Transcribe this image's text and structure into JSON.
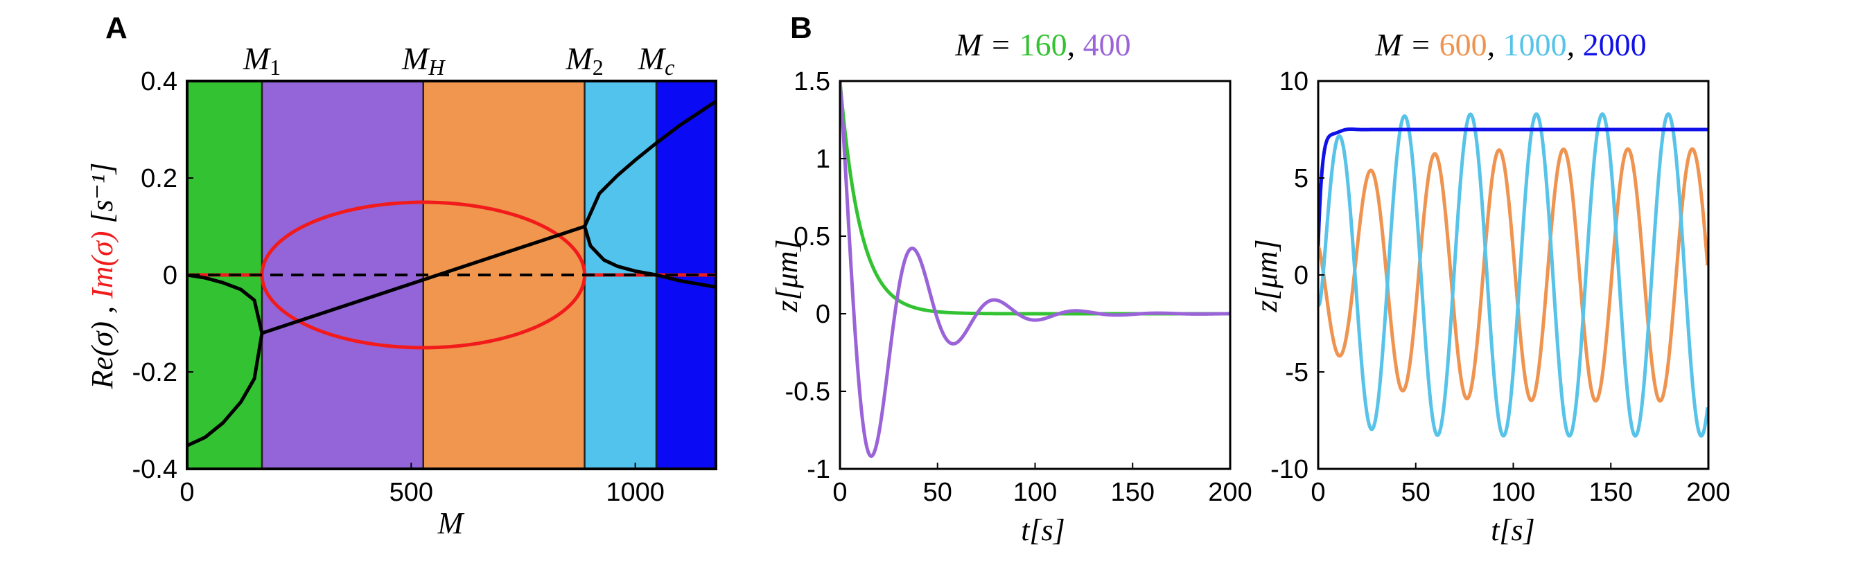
{
  "figure": {
    "panel_a": "A",
    "panel_b": "B"
  },
  "colors": {
    "green": "#33c332",
    "purple": "#9365d9",
    "orange": "#f0964e",
    "lightblue": "#52c3ec",
    "blue": "#0a0af5",
    "red": "#f21b1b",
    "curve_green": "#33c332",
    "curve_purple": "#9a64d8",
    "curve_orange": "#ef9450",
    "curve_cyan": "#57c3e8",
    "curve_blue": "#1010e8"
  },
  "chart_data": [
    {
      "id": "A",
      "type": "line",
      "xlim": [
        0,
        1180
      ],
      "ylim": [
        -0.4,
        0.4
      ],
      "xticks": [
        0,
        500,
        1000
      ],
      "xtick_labels": [
        "0",
        "500",
        "1000"
      ],
      "yticks": [
        0.4,
        0.2,
        0,
        -0.2,
        -0.4
      ],
      "ytick_labels": [
        "0.4",
        "0.2",
        "0",
        "-0.2",
        "-0.4"
      ],
      "xlabel": "M",
      "ylabel_parts": {
        "re": "Re(σ)",
        "sep": " , ",
        "im": "Im(σ)",
        "unit": " [s⁻¹]"
      },
      "regions": [
        {
          "from": 0,
          "to": 167,
          "color": "green"
        },
        {
          "from": 167,
          "to": 527,
          "color": "purple"
        },
        {
          "from": 527,
          "to": 887,
          "color": "orange"
        },
        {
          "from": 887,
          "to": 1047,
          "color": "lightblue"
        },
        {
          "from": 1047,
          "to": 1180,
          "color": "blue"
        }
      ],
      "top_labels": [
        {
          "x": 167,
          "base": "M",
          "sub": "1"
        },
        {
          "x": 527,
          "base": "M",
          "sub": "H"
        },
        {
          "x": 887,
          "base": "M",
          "sub": "2"
        },
        {
          "x": 1047,
          "base": "M",
          "sub": "c"
        }
      ],
      "series": [
        {
          "type": "re_branch",
          "color": "black",
          "points": [
            [
              0,
              -0.352
            ],
            [
              40,
              -0.335
            ],
            [
              80,
              -0.305
            ],
            [
              120,
              -0.262
            ],
            [
              150,
              -0.214
            ],
            [
              167,
              -0.12
            ],
            [
              150,
              -0.052
            ],
            [
              120,
              -0.03
            ],
            [
              80,
              -0.016
            ],
            [
              40,
              -0.006
            ],
            [
              0,
              0.0
            ]
          ]
        },
        {
          "type": "re_line",
          "color": "black",
          "points": [
            [
              167,
              -0.12
            ],
            [
              887,
              0.1
            ]
          ]
        },
        {
          "type": "re_branch",
          "color": "black",
          "points": [
            [
              887,
              0.1
            ],
            [
              920,
              0.168
            ],
            [
              960,
              0.205
            ],
            [
              1000,
              0.237
            ],
            [
              1047,
              0.272
            ],
            [
              1100,
              0.309
            ],
            [
              1180,
              0.358
            ]
          ]
        },
        {
          "type": "re_branch",
          "color": "black",
          "points": [
            [
              887,
              0.1
            ],
            [
              900,
              0.06
            ],
            [
              930,
              0.031
            ],
            [
              960,
              0.018
            ],
            [
              1000,
              0.008
            ],
            [
              1047,
              -0.0
            ],
            [
              1100,
              -0.012
            ],
            [
              1180,
              -0.025
            ]
          ]
        },
        {
          "type": "im_ellipse",
          "color": "red",
          "center": 527,
          "halfwidth": 360,
          "amplitude": 0.15
        },
        {
          "type": "im_zero",
          "color": "red",
          "segments": [
            [
              0,
              167
            ],
            [
              887,
              1180
            ]
          ]
        },
        {
          "type": "dashed_zero",
          "color": "black",
          "from": 0,
          "to": 1180
        }
      ]
    },
    {
      "id": "B1",
      "type": "line",
      "title_parts": [
        {
          "text": "M = ",
          "color": "#000000"
        },
        {
          "text": "160",
          "color": "#33c332"
        },
        {
          "text": ", ",
          "color": "#000000"
        },
        {
          "text": "400",
          "color": "#9a64d8"
        }
      ],
      "xlim": [
        0,
        200
      ],
      "ylim": [
        -1,
        1.5
      ],
      "xticks": [
        0,
        50,
        100,
        150,
        200
      ],
      "xtick_labels": [
        "0",
        "50",
        "100",
        "150",
        "200"
      ],
      "yticks": [
        1.5,
        1,
        0.5,
        0,
        -0.5,
        -1
      ],
      "ytick_labels": [
        "1.5",
        "1",
        "0.5",
        "0",
        "-0.5",
        "-1"
      ],
      "xlabel": "t[s]",
      "ylabel": "z[μm]",
      "series": [
        {
          "name": "160",
          "color": "curve_green",
          "model": "decay",
          "z0": 1.5,
          "tau": 10.5
        },
        {
          "name": "400",
          "color": "curve_purple",
          "model": "damped",
          "z0": 1.5,
          "period": 42,
          "tau": 27,
          "phase_shift": -1.2
        }
      ]
    },
    {
      "id": "B2",
      "type": "line",
      "title_parts": [
        {
          "text": "M = ",
          "color": "#000000"
        },
        {
          "text": "600",
          "color": "#ef9450"
        },
        {
          "text": ", ",
          "color": "#000000"
        },
        {
          "text": "1000",
          "color": "#57c3e8"
        },
        {
          "text": ", ",
          "color": "#000000"
        },
        {
          "text": "2000",
          "color": "#1010e8"
        }
      ],
      "xlim": [
        0,
        200
      ],
      "ylim": [
        -10,
        10
      ],
      "xticks": [
        0,
        50,
        100,
        150,
        200
      ],
      "xtick_labels": [
        "0",
        "50",
        "100",
        "150",
        "200"
      ],
      "yticks": [
        10,
        5,
        0,
        -5,
        -10
      ],
      "ytick_labels": [
        "10",
        "5",
        "0",
        "-5",
        "-10"
      ],
      "xlabel": "t[s]",
      "ylabel": "z[μm]",
      "series": [
        {
          "name": "600",
          "color": "curve_orange",
          "model": "growing",
          "z0": 1.5,
          "period": 33,
          "a0": 2.8,
          "amax": 6.5,
          "rate": 0.045,
          "center": 0
        },
        {
          "name": "1000",
          "color": "curve_cyan",
          "model": "growing",
          "z0": -1.5,
          "period": 33.8,
          "a0": 6.0,
          "amax": 8.3,
          "rate": 0.07,
          "center": 0
        },
        {
          "name": "2000",
          "color": "curve_blue",
          "model": "settle",
          "z0": 1.5,
          "level": 7.5,
          "overshoot": 0.35
        }
      ]
    }
  ]
}
